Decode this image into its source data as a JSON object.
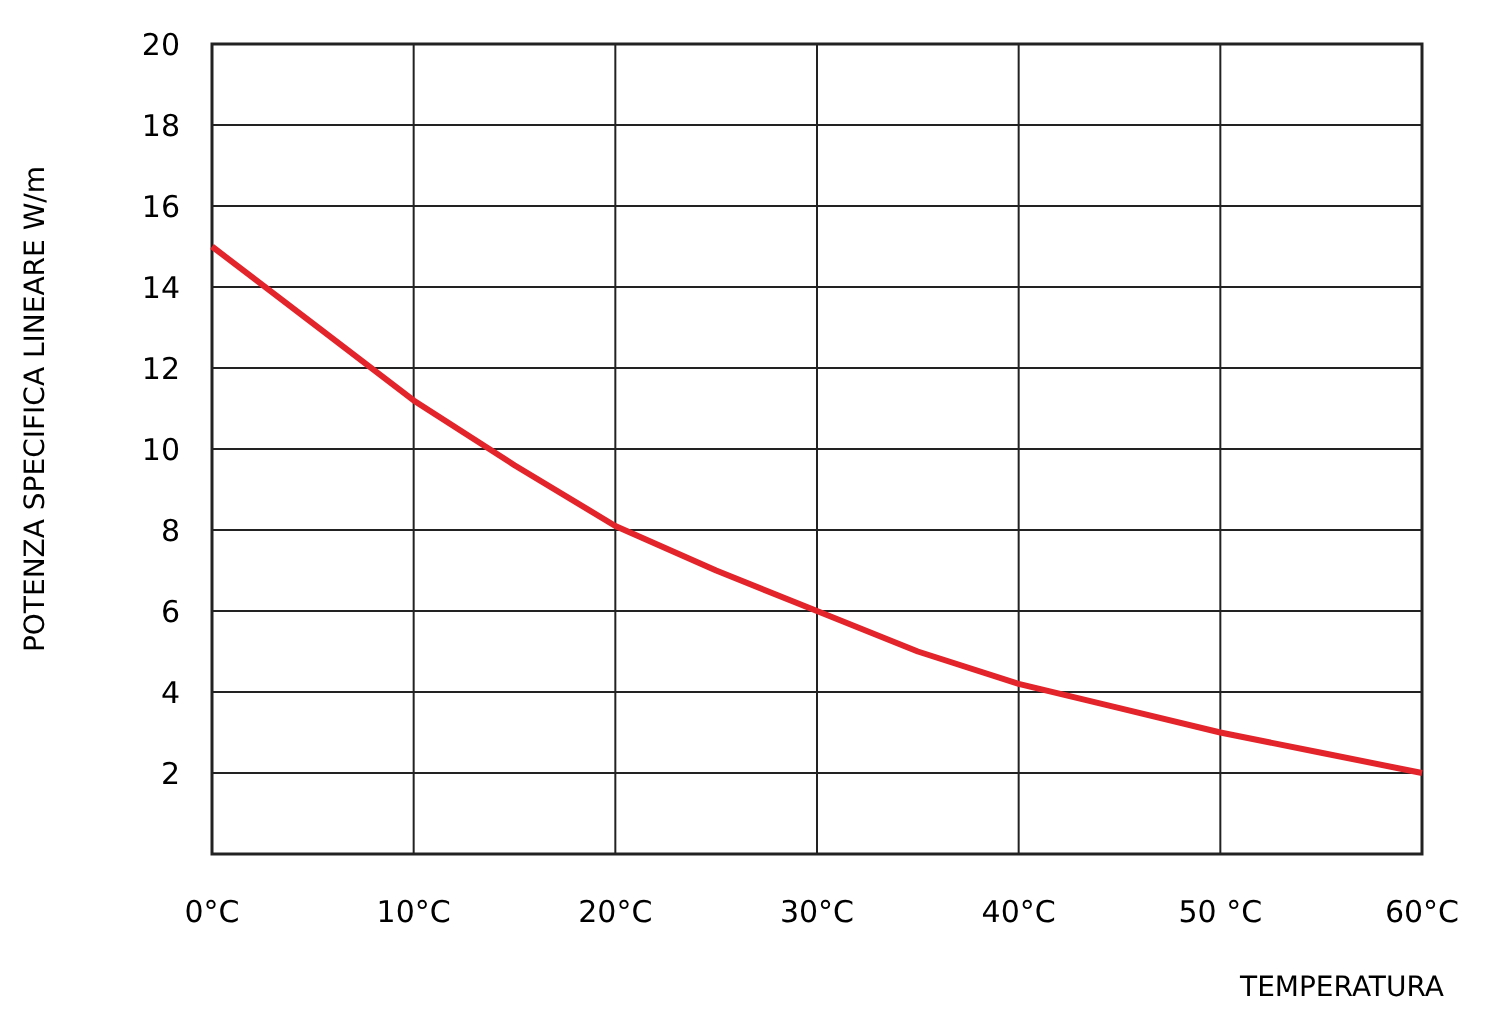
{
  "chart_data": {
    "type": "line",
    "xlabel": "TEMPERATURA",
    "ylabel": "POTENZA SPECIFICA LINEARE  W/m",
    "x": [
      0,
      5,
      10,
      15,
      20,
      25,
      30,
      35,
      40,
      45,
      50,
      55,
      60
    ],
    "series": [
      {
        "color": "#e3242b",
        "values": [
          15,
          13.1,
          11.2,
          9.6,
          8.1,
          7.0,
          6.0,
          5.0,
          4.2,
          3.6,
          3.0,
          2.5,
          2.0
        ]
      }
    ],
    "xlim": [
      0,
      60
    ],
    "xticks": [
      {
        "value": 0,
        "label": "0°C"
      },
      {
        "value": 10,
        "label": "10°C"
      },
      {
        "value": 20,
        "label": "20°C"
      },
      {
        "value": 30,
        "label": "30°C"
      },
      {
        "value": 40,
        "label": "40°C"
      },
      {
        "value": 50,
        "label": "50 °C"
      },
      {
        "value": 60,
        "label": "60°C"
      }
    ],
    "ylim": [
      0,
      20
    ],
    "yticks": [
      2,
      4,
      6,
      8,
      10,
      12,
      14,
      16,
      18,
      20
    ],
    "grid": true,
    "marker": "none",
    "line_style": "solid"
  }
}
